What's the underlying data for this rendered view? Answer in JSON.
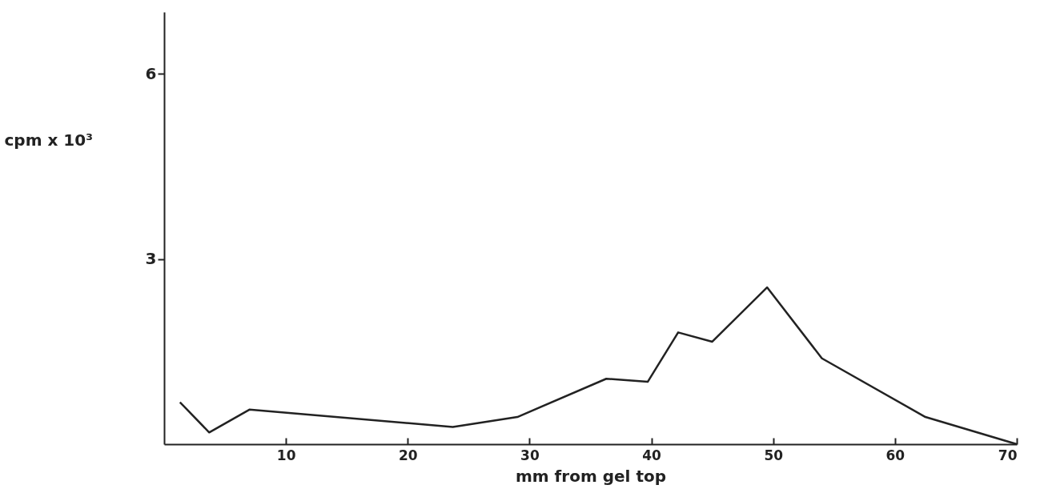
{
  "chart_data": {
    "type": "line",
    "xlabel": "mm from gel top",
    "ylabel": "cpm x 10³",
    "x": [
      1.3,
      3.7,
      7.0,
      23.7,
      29.0,
      36.3,
      39.7,
      42.2,
      45.0,
      49.5,
      54.0,
      62.5,
      70
    ],
    "series": [
      {
        "color": "#222222",
        "values": [
          0.68,
          0.19,
          0.56,
          0.28,
          0.44,
          1.06,
          1.01,
          1.81,
          1.66,
          2.54,
          1.39,
          0.44,
          0
        ]
      }
    ],
    "xlim": [
      0,
      70
    ],
    "ylim": [
      0,
      7
    ],
    "xticks": [
      10,
      20,
      30,
      40,
      50,
      60,
      70
    ],
    "yticks": [
      3,
      6
    ],
    "grid": false,
    "marker": "none",
    "line_style": "solid"
  }
}
